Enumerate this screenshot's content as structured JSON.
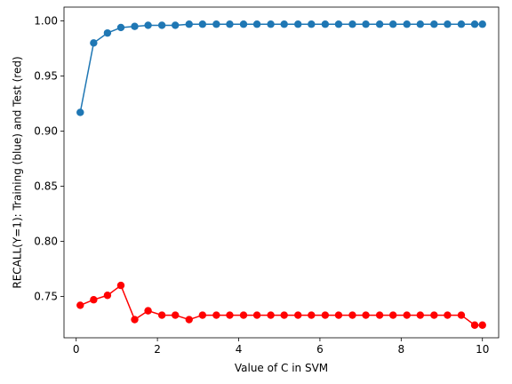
{
  "chart_data": {
    "type": "line",
    "title": "",
    "xlabel": "Value of C in SVM",
    "ylabel": "RECALL(Y=1): Training (blue) and Test (red)",
    "xlim": [
      -0.3,
      10.4
    ],
    "ylim": [
      0.7125,
      1.0125
    ],
    "xticks": [
      0,
      2,
      4,
      6,
      8,
      10
    ],
    "yticks": [
      0.75,
      0.8,
      0.85,
      0.9,
      0.95,
      1.0
    ],
    "x": [
      0.1,
      0.43,
      0.77,
      1.1,
      1.44,
      1.77,
      2.11,
      2.44,
      2.78,
      3.11,
      3.45,
      3.78,
      4.12,
      4.45,
      4.79,
      5.12,
      5.46,
      5.79,
      6.13,
      6.46,
      6.8,
      7.13,
      7.47,
      7.8,
      8.14,
      8.47,
      8.81,
      9.14,
      9.48,
      9.81,
      10.0
    ],
    "series": [
      {
        "name": "Training",
        "color": "#1f77b4",
        "values": [
          0.917,
          0.98,
          0.989,
          0.994,
          0.995,
          0.996,
          0.996,
          0.996,
          0.997,
          0.997,
          0.997,
          0.997,
          0.997,
          0.997,
          0.997,
          0.997,
          0.997,
          0.997,
          0.997,
          0.997,
          0.997,
          0.997,
          0.997,
          0.997,
          0.997,
          0.997,
          0.997,
          0.997,
          0.997,
          0.997,
          0.997
        ]
      },
      {
        "name": "Test",
        "color": "#ff0000",
        "values": [
          0.742,
          0.747,
          0.751,
          0.76,
          0.729,
          0.737,
          0.733,
          0.733,
          0.729,
          0.733,
          0.733,
          0.733,
          0.733,
          0.733,
          0.733,
          0.733,
          0.733,
          0.733,
          0.733,
          0.733,
          0.733,
          0.733,
          0.733,
          0.733,
          0.733,
          0.733,
          0.733,
          0.733,
          0.733,
          0.724,
          0.724
        ]
      }
    ],
    "grid": false,
    "legend": "none"
  }
}
